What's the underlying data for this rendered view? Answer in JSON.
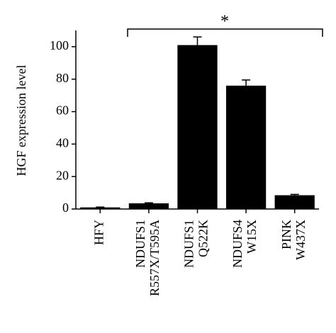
{
  "chart_data": {
    "type": "bar",
    "ylabel": "HGF expression level",
    "categories": [
      [
        "HFY"
      ],
      [
        "NDUFS1",
        "R557X/T595A"
      ],
      [
        "NDUFS1",
        "Q522K"
      ],
      [
        "NDUFS4",
        "W15X"
      ],
      [
        "PINK",
        "W437X"
      ]
    ],
    "values": [
      1,
      3.5,
      101,
      76,
      8.5
    ],
    "errors": [
      0.2,
      0.3,
      5,
      3.5,
      0.5
    ],
    "color": "#000000",
    "ylim": [
      0,
      110
    ],
    "yticks": [
      0,
      20,
      40,
      60,
      80,
      100
    ],
    "annotation": "*"
  }
}
